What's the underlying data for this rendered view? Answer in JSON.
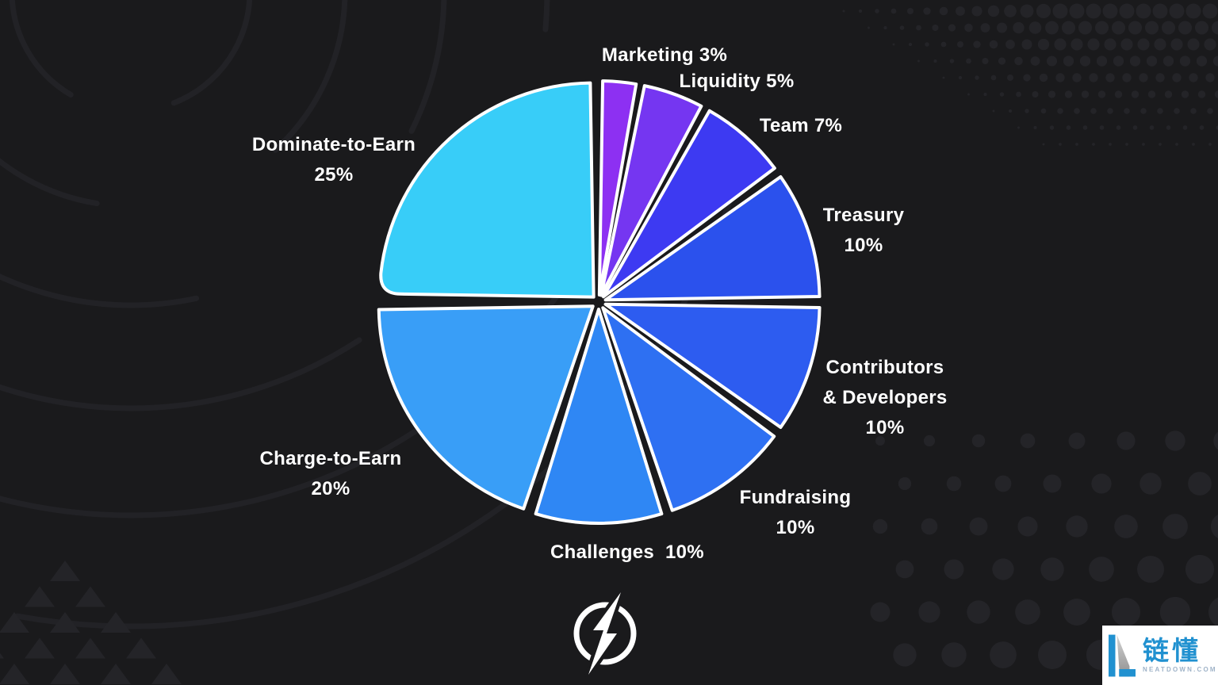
{
  "colors": {
    "background": "#1a1a1c",
    "decor": "#242428",
    "slice_stroke": "#ffffff",
    "label": "#ffffff",
    "logo": "#ffffff",
    "watermark_bg": "#ffffff",
    "watermark_accent": "#2191d0",
    "watermark_sub": "#9fb3c8"
  },
  "chart_data": {
    "type": "pie",
    "direction": "clockwise",
    "start_angle_deg": 0,
    "unit": "%",
    "slices": [
      {
        "label": "Marketing",
        "value": 3,
        "color": "#8d30f2",
        "label_lines": [
          "Marketing 3%"
        ]
      },
      {
        "label": "Liquidity",
        "value": 5,
        "color": "#7536f1",
        "label_lines": [
          "Liquidity 5%"
        ]
      },
      {
        "label": "Team",
        "value": 7,
        "color": "#3d3af2",
        "label_lines": [
          "Team 7%"
        ]
      },
      {
        "label": "Treasury",
        "value": 10,
        "color": "#2b51ed",
        "label_lines": [
          "Treasury",
          "10%"
        ]
      },
      {
        "label": "Contributors & Developers",
        "value": 10,
        "color": "#2d5cf0",
        "label_lines": [
          "Contributors",
          "& Developers",
          "10%"
        ]
      },
      {
        "label": "Fundraising",
        "value": 10,
        "color": "#2e70f2",
        "label_lines": [
          "Fundraising",
          "10%"
        ]
      },
      {
        "label": "Challenges",
        "value": 10,
        "color": "#2f87f4",
        "label_lines": [
          "Challenges  10%"
        ]
      },
      {
        "label": "Charge-to-Earn",
        "value": 20,
        "color": "#399ef7",
        "label_lines": [
          "Charge-to-Earn",
          "20%"
        ]
      },
      {
        "label": "Dominate-to-Earn",
        "value": 25,
        "color": "#38cdf8",
        "label_lines": [
          "Dominate-to-Earn",
          "25%"
        ]
      }
    ]
  },
  "watermark": {
    "cn_name": "链懂",
    "site": "NEATDOWN.COM"
  }
}
